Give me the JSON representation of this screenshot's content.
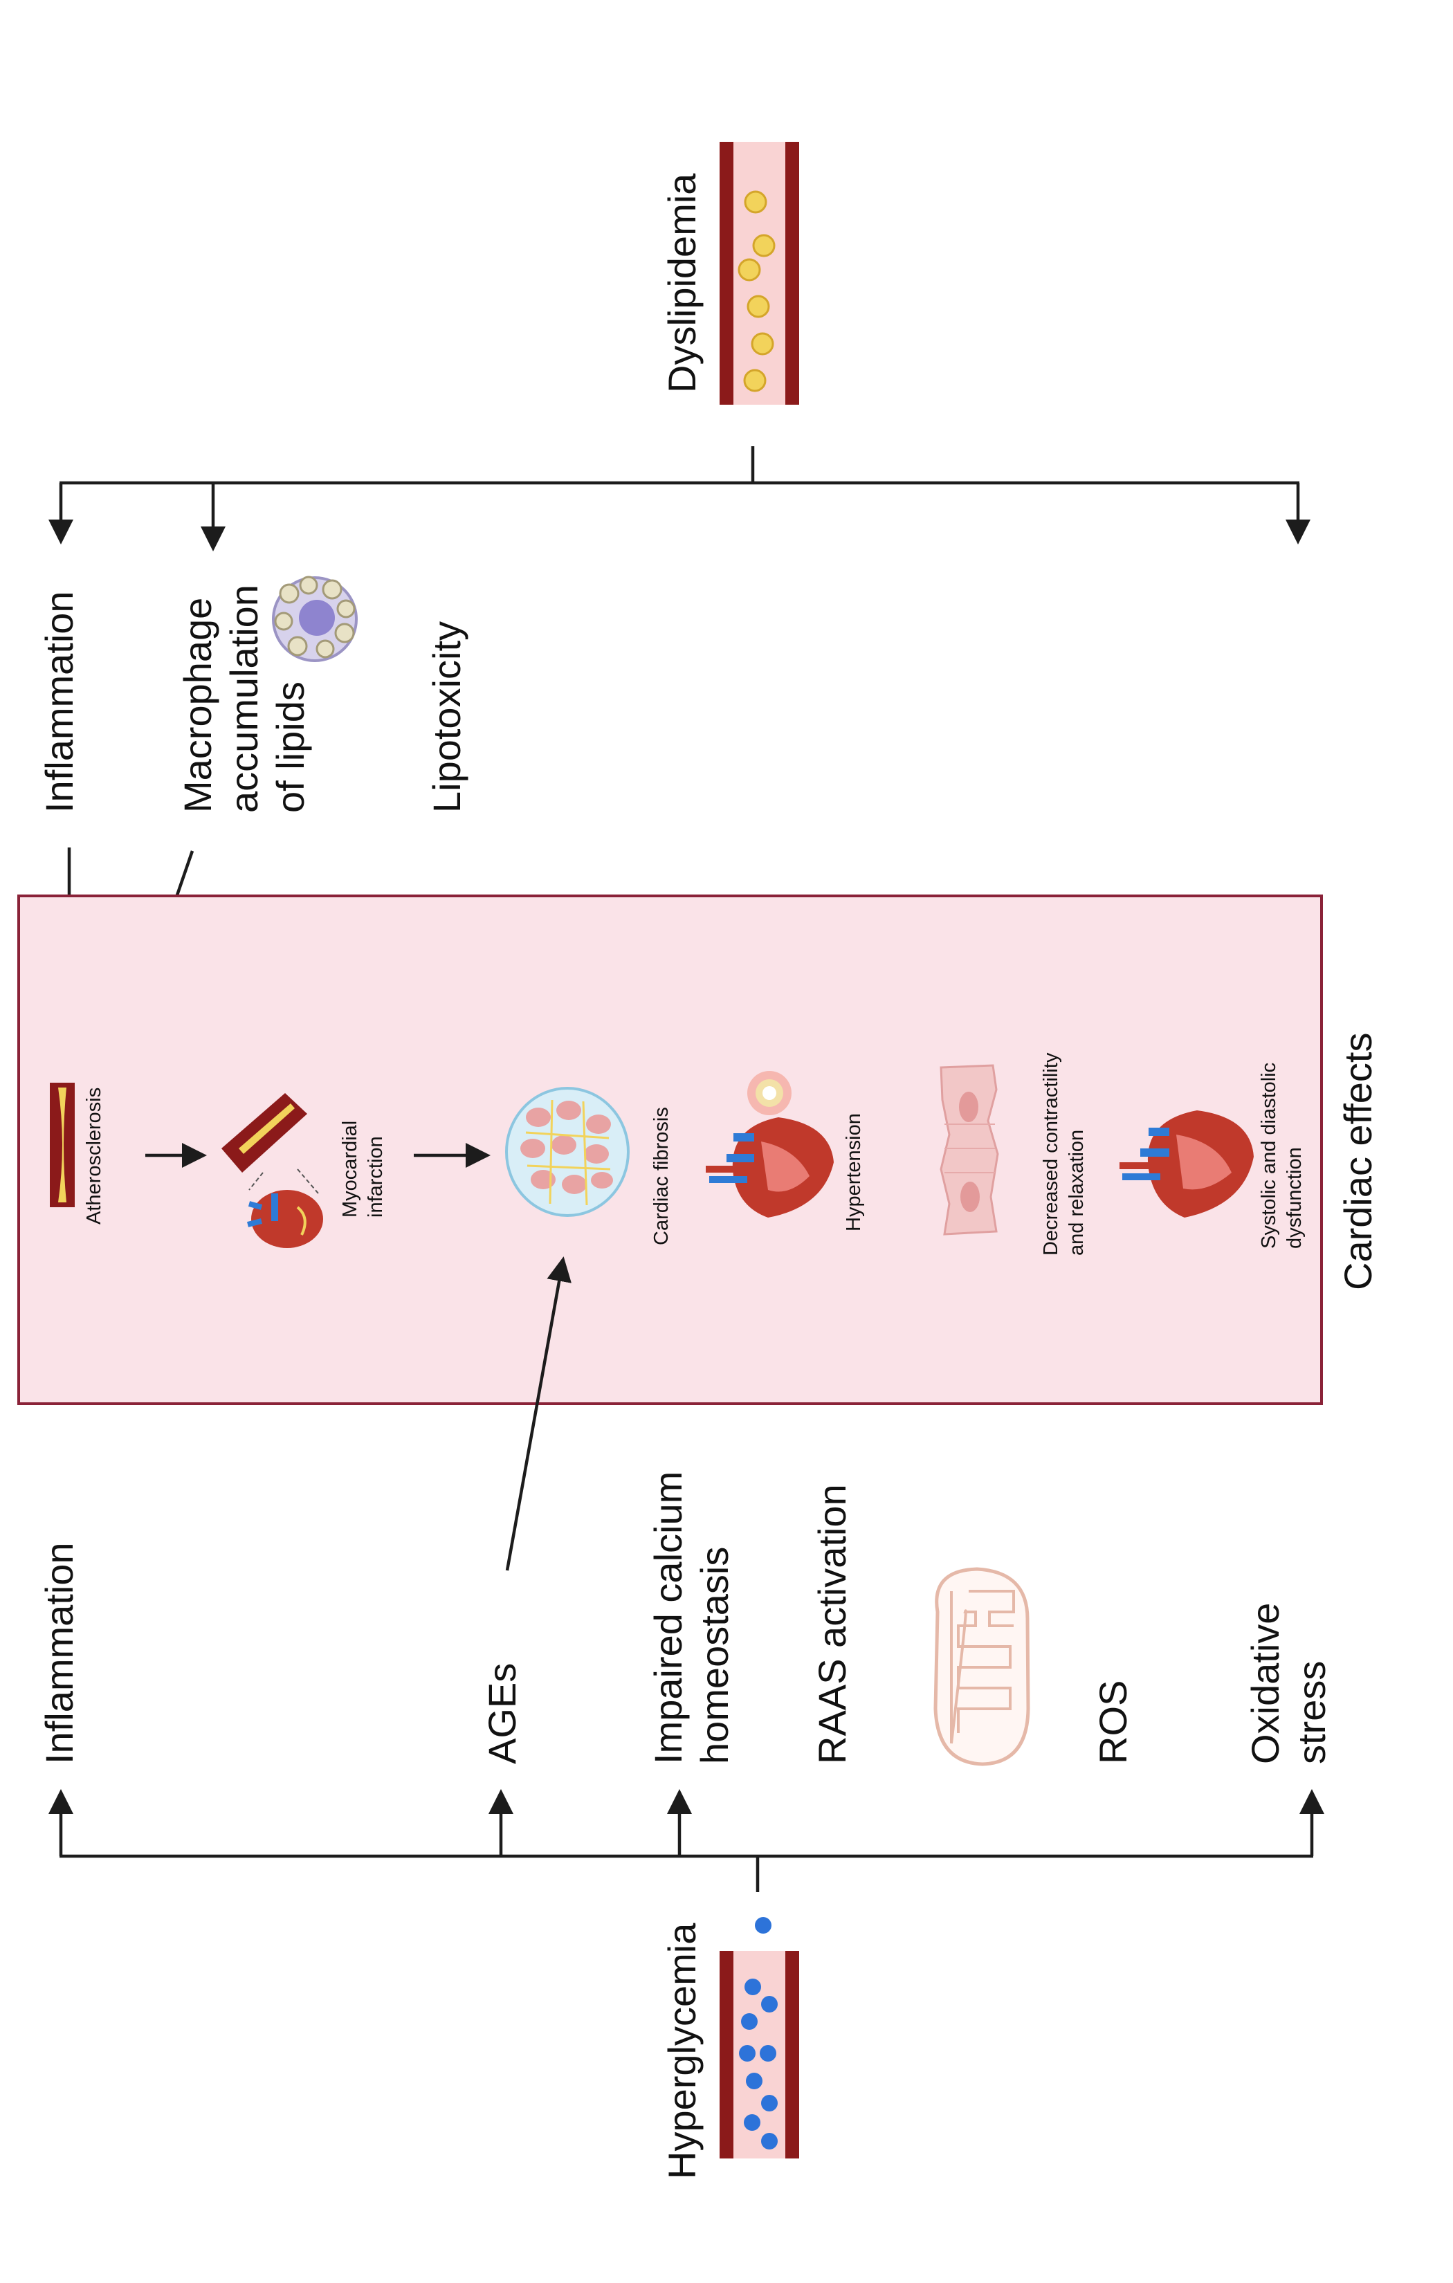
{
  "labels": {
    "dyslipidemia": "Dyslipidemia",
    "hyperglycemia": "Hyperglycemia",
    "cardiac_effects": "Cardiac effects"
  },
  "dyslipidemia_effects": {
    "inflammation": "Inflammation",
    "macrophage_line1": "Macrophage",
    "macrophage_line2": "accumulation",
    "macrophage_line3": "of lipids",
    "lipotoxicity": "Lipotoxicity"
  },
  "hyperglycemia_effects": {
    "inflammation": "Inflammation",
    "ages": "AGEs",
    "calcium_line1": "Impaired calcium",
    "calcium_line2": "homeostasis",
    "raas": "RAAS activation",
    "ros": "ROS",
    "oxidative_line1": "Oxidative",
    "oxidative_line2": "stress"
  },
  "cardiac": {
    "atherosclerosis": "Atherosclerosis",
    "mi_line1": "Myocardial",
    "mi_line2": "infarction",
    "fibrosis": "Cardiac fibrosis",
    "hypertension": "Hypertension",
    "contractility_line1": "Decreased contractility",
    "contractility_line2": "and relaxation",
    "dysfunction_line1": "Systolic and diastolic",
    "dysfunction_line2": "dysfunction"
  },
  "colors": {
    "vessel_wall": "#8b1a1a",
    "vessel_lumen": "#f9d3d3",
    "lipid_droplet": "#f2d35b",
    "glucose": "#2d73d9",
    "cardiac_box_fill": "#fae3e8",
    "cardiac_box_stroke": "#8a2238",
    "arrow": "#1c1c1c"
  },
  "icons": [
    "dyslipidemia-vessel-icon",
    "hyperglycemia-vessel-icon",
    "foam-cell-icon",
    "mitochondrion-icon",
    "atherosclerosis-vessel-icon",
    "myocardial-infarction-icon",
    "cardiac-fibrosis-icon",
    "hypertension-heart-icon",
    "cardiomyocyte-icon",
    "heart-icon"
  ]
}
